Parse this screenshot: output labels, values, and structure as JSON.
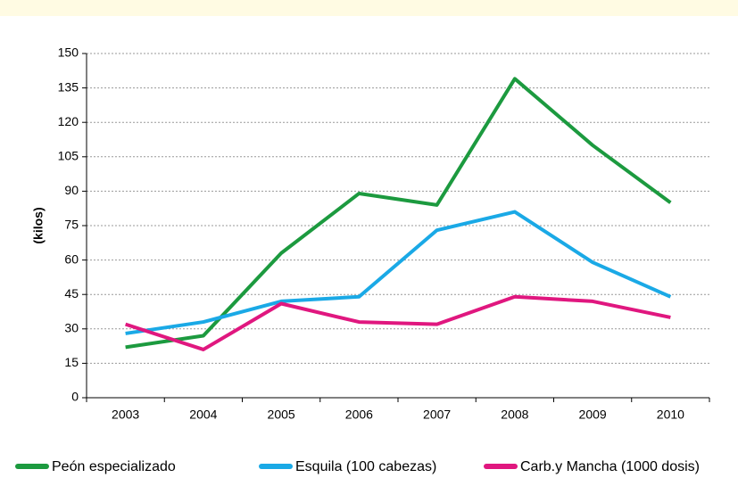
{
  "chart_data": {
    "type": "line",
    "y_label": "(kilos)",
    "categories": [
      "2003",
      "2004",
      "2005",
      "2006",
      "2007",
      "2008",
      "2009",
      "2010"
    ],
    "series": [
      {
        "name": "Peón especializado",
        "color": "#1c9a3f",
        "values": [
          22,
          27,
          63,
          89,
          84,
          139,
          110,
          85
        ]
      },
      {
        "name": "Esquila (100 cabezas)",
        "color": "#1aa9e6",
        "values": [
          28,
          33,
          42,
          44,
          73,
          81,
          59,
          44
        ]
      },
      {
        "name": "Carb.y Mancha (1000 dosis)",
        "color": "#e0177f",
        "values": [
          32,
          21,
          41,
          33,
          32,
          44,
          42,
          35
        ]
      }
    ],
    "ylim": [
      0,
      150
    ],
    "yticks": [
      0,
      15,
      30,
      45,
      60,
      75,
      90,
      105,
      120,
      135,
      150
    ],
    "grid": true,
    "legend": "bottom"
  }
}
